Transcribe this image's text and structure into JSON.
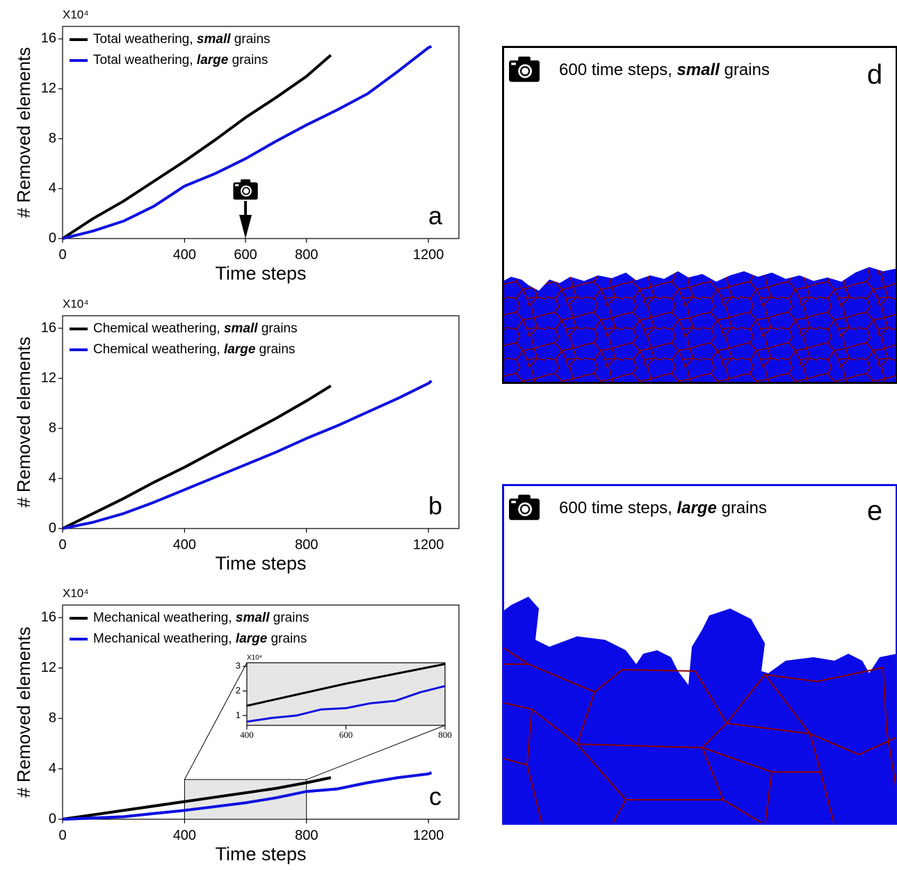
{
  "chart_data": [
    {
      "type": "line",
      "panel_label": "a",
      "y_multiplier": "X10⁴",
      "ylabel": "# Removed elements",
      "xlabel": "Time steps",
      "xlim": [
        0,
        1300
      ],
      "ylim": [
        0,
        17
      ],
      "xticks": [
        0,
        400,
        600,
        800,
        1200
      ],
      "yticks": [
        0,
        4,
        8,
        12,
        16
      ],
      "snapshot_x": 600,
      "series": [
        {
          "name": "Total weathering, small grains",
          "emphasis": "small",
          "color": "#000000",
          "x": [
            0,
            100,
            200,
            300,
            400,
            500,
            600,
            700,
            800,
            880
          ],
          "values": [
            0,
            1.6,
            3.0,
            4.6,
            6.2,
            7.9,
            9.7,
            11.3,
            13.0,
            14.7
          ]
        },
        {
          "name": "Total weathering, large grains",
          "emphasis": "large",
          "color": "#1010e0",
          "x": [
            0,
            100,
            200,
            300,
            400,
            500,
            600,
            700,
            800,
            900,
            1000,
            1100,
            1200,
            1210
          ],
          "values": [
            0,
            0.6,
            1.4,
            2.6,
            4.2,
            5.2,
            6.4,
            7.8,
            9.1,
            10.3,
            11.6,
            13.4,
            15.3,
            15.4
          ]
        }
      ]
    },
    {
      "type": "line",
      "panel_label": "b",
      "y_multiplier": "X10⁴",
      "ylabel": "# Removed elements",
      "xlabel": "Time steps",
      "xlim": [
        0,
        1300
      ],
      "ylim": [
        0,
        17
      ],
      "xticks": [
        0,
        400,
        800,
        1200
      ],
      "yticks": [
        0,
        4,
        8,
        12,
        16
      ],
      "series": [
        {
          "name": "Chemical weathering, small grains",
          "emphasis": "small",
          "color": "#000000",
          "x": [
            0,
            100,
            200,
            300,
            400,
            500,
            600,
            700,
            800,
            880
          ],
          "values": [
            0,
            1.2,
            2.4,
            3.7,
            4.9,
            6.2,
            7.5,
            8.8,
            10.2,
            11.4
          ]
        },
        {
          "name": "Chemical weathering, large grains",
          "emphasis": "large",
          "color": "#1010e0",
          "x": [
            0,
            100,
            200,
            300,
            400,
            500,
            600,
            700,
            800,
            900,
            1000,
            1100,
            1200,
            1210
          ],
          "values": [
            0,
            0.5,
            1.2,
            2.1,
            3.1,
            4.1,
            5.1,
            6.1,
            7.2,
            8.2,
            9.3,
            10.4,
            11.6,
            11.8
          ]
        }
      ]
    },
    {
      "type": "line",
      "panel_label": "c",
      "y_multiplier": "X10⁴",
      "ylabel": "# Removed elements",
      "xlabel": "Time steps",
      "xlim": [
        0,
        1300
      ],
      "ylim": [
        0,
        17
      ],
      "xticks": [
        0,
        400,
        800,
        1200
      ],
      "yticks": [
        0,
        4,
        8,
        12,
        16
      ],
      "series": [
        {
          "name": "Mechanical weathering, small grains",
          "emphasis": "small",
          "color": "#000000",
          "x": [
            0,
            100,
            200,
            300,
            400,
            500,
            600,
            700,
            800,
            880
          ],
          "values": [
            0,
            0.35,
            0.7,
            1.05,
            1.4,
            1.75,
            2.1,
            2.45,
            2.9,
            3.3
          ]
        },
        {
          "name": "Mechanical weathering, large grains",
          "emphasis": "large",
          "color": "#1010e0",
          "x": [
            0,
            100,
            200,
            300,
            400,
            500,
            600,
            700,
            800,
            900,
            1000,
            1100,
            1200,
            1210
          ],
          "values": [
            0,
            0.1,
            0.2,
            0.45,
            0.7,
            1.0,
            1.3,
            1.7,
            2.2,
            2.4,
            2.9,
            3.3,
            3.6,
            3.7
          ]
        }
      ]
    },
    {
      "type": "line",
      "y_multiplier": "X10⁴",
      "xlim": [
        400,
        800
      ],
      "ylim": [
        0.6,
        3.15
      ],
      "xticks": [
        400,
        600,
        800
      ],
      "yticks": [
        1,
        2,
        3
      ],
      "series": [
        {
          "color": "#000000",
          "x": [
            400,
            500,
            600,
            700,
            800
          ],
          "values": [
            1.4,
            1.85,
            2.3,
            2.7,
            3.1
          ]
        },
        {
          "color": "#1010e0",
          "x": [
            400,
            450,
            500,
            550,
            600,
            650,
            700,
            750,
            800
          ],
          "values": [
            0.75,
            0.9,
            1.0,
            1.25,
            1.3,
            1.5,
            1.6,
            1.95,
            2.2
          ]
        }
      ]
    }
  ],
  "panels": [
    {
      "label": "d",
      "caption": "600 time steps, small grains",
      "emphasis": "small"
    },
    {
      "label": "e",
      "caption": "600 time steps, large grains",
      "emphasis": "large"
    }
  ]
}
